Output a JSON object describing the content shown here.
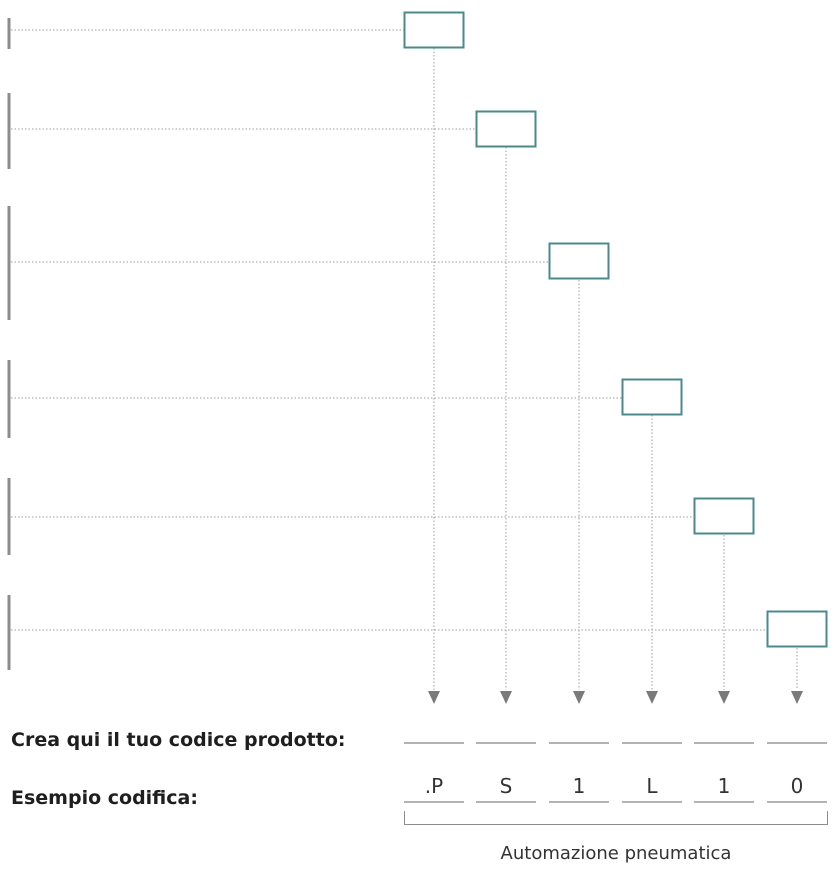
{
  "labels": {
    "create_code": "Crea qui il tuo codice prodotto:",
    "example": "Esempio codifica:"
  },
  "example_code": [
    ".P",
    "S",
    "1",
    "L",
    "1",
    "0"
  ],
  "caption": "Automazione pneumatica",
  "colors": {
    "box_stroke": "#4a8a8c",
    "bracket": "#8c8c8c",
    "dotted_line": "#9e9e9e",
    "arrow": "#7a7a7a",
    "underline": "#9a9a9a"
  }
}
